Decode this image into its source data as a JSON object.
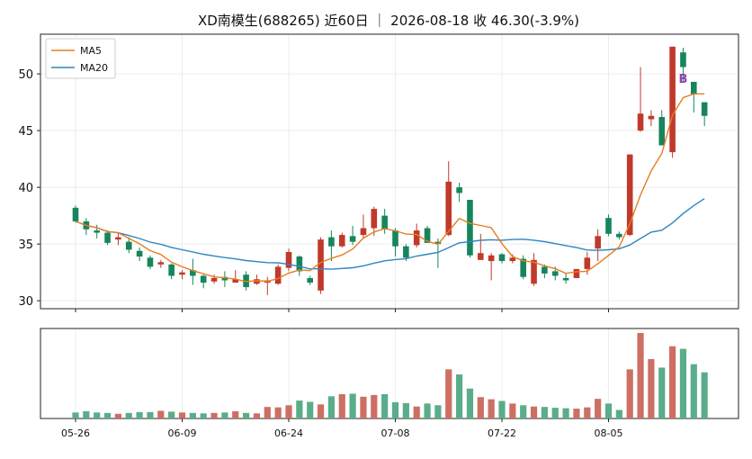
{
  "chart_data": {
    "type": "candlestick",
    "title": "XD南模生(688265) 近60日 ｜ 2026-08-18 收 46.30(-3.9%)",
    "price_axis": {
      "ylim": [
        29.3,
        53.5
      ],
      "ticks": [
        30,
        35,
        40,
        45,
        50
      ]
    },
    "x_tick_labels": [
      "05-26",
      "06-09",
      "06-24",
      "07-08",
      "07-22",
      "08-05"
    ],
    "x_tick_index": [
      0,
      10,
      20,
      30,
      40,
      50
    ],
    "legend": {
      "position": "top-left",
      "items": [
        {
          "name": "MA5",
          "color": "#e67e22"
        },
        {
          "name": "MA20",
          "color": "#2e86c1"
        }
      ]
    },
    "marker": {
      "label": "B",
      "index": 57,
      "price": 49.6,
      "color": "#8e44ad"
    },
    "colors": {
      "up": "#c0392b",
      "down": "#16855b",
      "vol_up": "#cd6f63",
      "vol_down": "#5aad8a"
    },
    "candles": [
      [
        38.2,
        37.0,
        38.4,
        36.9
      ],
      [
        37.0,
        36.3,
        37.3,
        35.8
      ],
      [
        36.2,
        36.0,
        36.7,
        35.5
      ],
      [
        36.0,
        35.1,
        36.2,
        34.9
      ],
      [
        35.4,
        35.6,
        36.0,
        34.9
      ],
      [
        35.2,
        34.5,
        35.6,
        34.2
      ],
      [
        34.4,
        33.9,
        34.7,
        33.5
      ],
      [
        33.8,
        33.0,
        34.0,
        32.8
      ],
      [
        33.2,
        33.4,
        33.6,
        32.9
      ],
      [
        33.2,
        32.2,
        33.3,
        31.9
      ],
      [
        32.3,
        32.5,
        32.7,
        31.9
      ],
      [
        32.7,
        32.2,
        33.7,
        31.4
      ],
      [
        32.2,
        31.6,
        32.3,
        31.1
      ],
      [
        31.7,
        32.0,
        32.3,
        31.5
      ],
      [
        32.1,
        31.8,
        32.6,
        31.2
      ],
      [
        31.6,
        31.9,
        32.7,
        31.6
      ],
      [
        32.3,
        31.2,
        32.6,
        30.9
      ],
      [
        31.5,
        31.9,
        32.3,
        31.4
      ],
      [
        31.6,
        31.8,
        32.1,
        30.5
      ],
      [
        31.5,
        33.0,
        33.2,
        31.4
      ],
      [
        32.9,
        34.3,
        34.6,
        32.6
      ],
      [
        33.9,
        32.6,
        34.0,
        32.2
      ],
      [
        32.0,
        31.6,
        32.2,
        31.4
      ],
      [
        30.9,
        35.4,
        35.6,
        30.6
      ],
      [
        35.6,
        34.8,
        36.2,
        33.5
      ],
      [
        34.8,
        35.8,
        36.0,
        34.7
      ],
      [
        35.7,
        35.2,
        36.6,
        34.9
      ],
      [
        35.8,
        36.4,
        37.6,
        35.5
      ],
      [
        36.4,
        38.1,
        38.3,
        35.7
      ],
      [
        37.5,
        36.3,
        38.1,
        35.9
      ],
      [
        36.2,
        34.8,
        36.4,
        33.9
      ],
      [
        34.8,
        33.8,
        35.0,
        33.5
      ],
      [
        34.9,
        36.2,
        36.8,
        34.7
      ],
      [
        36.4,
        35.1,
        36.6,
        35.1
      ],
      [
        35.2,
        35.0,
        35.5,
        32.9
      ],
      [
        35.8,
        40.5,
        42.3,
        35.7
      ],
      [
        40.0,
        39.5,
        40.4,
        38.7
      ],
      [
        38.9,
        34.0,
        38.9,
        33.8
      ],
      [
        33.6,
        34.2,
        35.9,
        33.6
      ],
      [
        33.5,
        34.0,
        34.2,
        31.8
      ],
      [
        34.1,
        33.5,
        34.2,
        33.3
      ],
      [
        33.5,
        33.8,
        34.1,
        33.3
      ],
      [
        33.7,
        32.1,
        34.0,
        31.9
      ],
      [
        31.5,
        33.6,
        34.2,
        31.3
      ],
      [
        33.0,
        32.4,
        33.2,
        32.0
      ],
      [
        32.6,
        32.2,
        33.0,
        31.8
      ],
      [
        32.0,
        31.8,
        32.4,
        31.5
      ],
      [
        32.0,
        32.8,
        32.8,
        32.0
      ],
      [
        32.8,
        33.8,
        34.3,
        32.3
      ],
      [
        34.6,
        35.7,
        36.3,
        33.5
      ],
      [
        37.3,
        35.9,
        37.6,
        35.7
      ],
      [
        35.9,
        35.6,
        36.1,
        35.4
      ],
      [
        35.8,
        42.9,
        42.9,
        35.7
      ],
      [
        45.0,
        46.5,
        50.6,
        44.9
      ],
      [
        46.0,
        46.3,
        46.8,
        45.4
      ],
      [
        46.2,
        43.7,
        46.8,
        43.7
      ],
      [
        43.1,
        52.4,
        52.4,
        42.6
      ],
      [
        51.9,
        50.6,
        52.3,
        49.3
      ],
      [
        49.3,
        48.2,
        49.3,
        46.6
      ],
      [
        47.5,
        46.3,
        47.5,
        45.4
      ]
    ],
    "volume": [
      0.07,
      0.085,
      0.07,
      0.065,
      0.055,
      0.065,
      0.075,
      0.075,
      0.09,
      0.08,
      0.07,
      0.065,
      0.06,
      0.065,
      0.07,
      0.085,
      0.065,
      0.06,
      0.135,
      0.13,
      0.155,
      0.21,
      0.195,
      0.165,
      0.26,
      0.285,
      0.29,
      0.255,
      0.275,
      0.285,
      0.19,
      0.18,
      0.14,
      0.175,
      0.155,
      0.575,
      0.515,
      0.35,
      0.25,
      0.225,
      0.205,
      0.175,
      0.155,
      0.14,
      0.135,
      0.125,
      0.12,
      0.115,
      0.13,
      0.23,
      0.175,
      0.1,
      0.575,
      1.0,
      0.695,
      0.595,
      0.845,
      0.815,
      0.635,
      0.54
    ]
  }
}
